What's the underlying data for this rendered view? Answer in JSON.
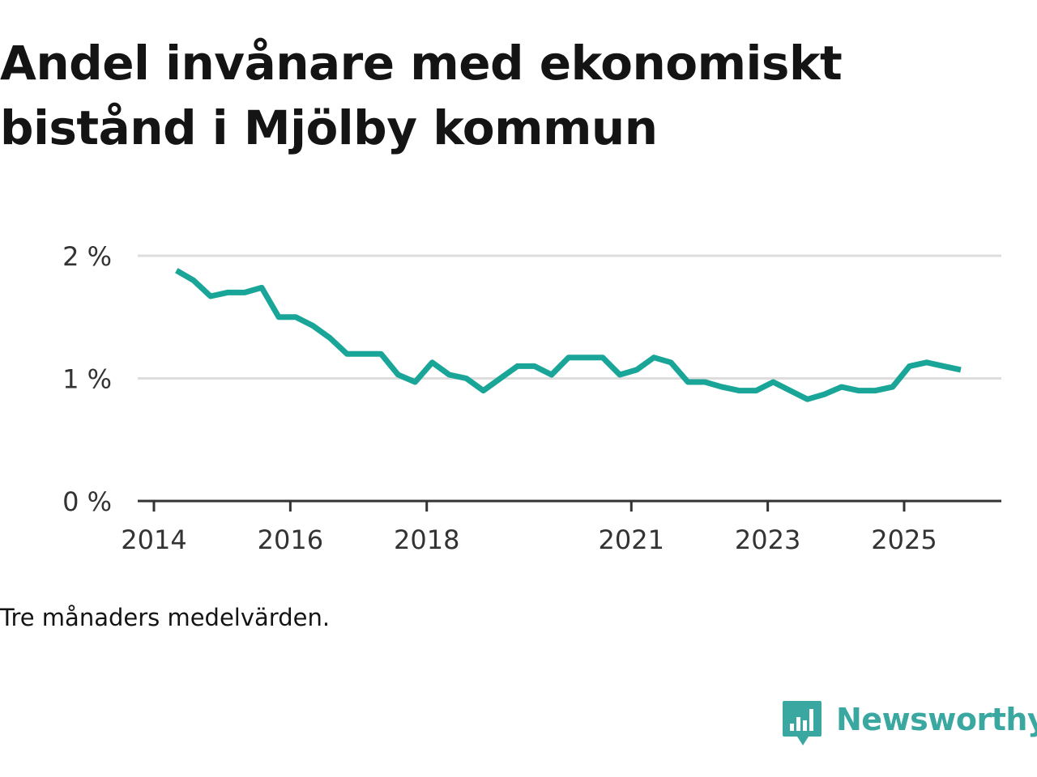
{
  "chart_data": {
    "type": "line",
    "title": "Andel invånare med ekonomiskt bistånd i Mjölby kommun",
    "note": "Tre månaders medelvärden.",
    "xlabel": "",
    "ylabel": "",
    "y_ticks": [
      0,
      1,
      2
    ],
    "y_tick_labels": [
      "0 %",
      "1 %",
      "2 %"
    ],
    "ylim": [
      0,
      2
    ],
    "xlim": [
      2014,
      2026.6
    ],
    "x_ticks": [
      2014,
      2016,
      2018,
      2021,
      2023,
      2025
    ],
    "x_tick_labels": [
      "2014",
      "2016",
      "2018",
      "2021",
      "2023",
      "2025"
    ],
    "grid": true,
    "series": [
      {
        "name": "Andel invånare med ekonomiskt bistånd",
        "color": "#19a597",
        "x": [
          2014.33,
          2014.58,
          2014.83,
          2015.08,
          2015.33,
          2015.58,
          2015.83,
          2016.08,
          2016.33,
          2016.58,
          2016.83,
          2017.08,
          2017.33,
          2017.58,
          2017.83,
          2018.08,
          2018.33,
          2018.58,
          2018.83,
          2019.08,
          2019.33,
          2019.58,
          2019.83,
          2020.08,
          2020.33,
          2020.58,
          2020.83,
          2021.08,
          2021.33,
          2021.58,
          2021.83,
          2022.08,
          2022.33,
          2022.58,
          2022.83,
          2023.08,
          2023.33,
          2023.58,
          2023.83,
          2024.08,
          2024.33,
          2024.58,
          2024.83,
          2025.08,
          2025.33,
          2025.58,
          2025.83
        ],
        "values": [
          1.88,
          1.8,
          1.67,
          1.7,
          1.7,
          1.74,
          1.5,
          1.5,
          1.43,
          1.33,
          1.2,
          1.2,
          1.2,
          1.03,
          0.97,
          1.13,
          1.03,
          1.0,
          0.9,
          1.0,
          1.1,
          1.1,
          1.03,
          1.17,
          1.17,
          1.17,
          1.03,
          1.07,
          1.17,
          1.13,
          0.97,
          0.97,
          0.93,
          0.9,
          0.9,
          0.97,
          0.9,
          0.83,
          0.87,
          0.93,
          0.9,
          0.9,
          0.93,
          1.1,
          1.13,
          1.1,
          1.07
        ]
      }
    ]
  },
  "brand": {
    "name": "Newsworthy",
    "color": "#3aa8a0"
  },
  "colors": {
    "axis": "#333333",
    "grid": "#dddddd",
    "text": "#141414",
    "tick_text": "#333333"
  },
  "icons": {
    "logo": "newsworthy-logo-icon"
  }
}
